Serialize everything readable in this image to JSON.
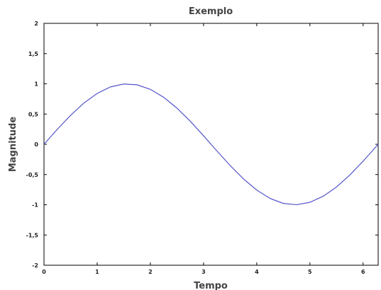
{
  "chart_data": {
    "type": "line",
    "title": "Exemplo",
    "xlabel": "Tempo",
    "ylabel": "Magnitude",
    "xlim": [
      0,
      6.283
    ],
    "ylim": [
      -2,
      2
    ],
    "x_ticks": [
      0,
      1,
      2,
      3,
      4,
      5,
      6
    ],
    "x_tick_labels": [
      "0",
      "1",
      "2",
      "3",
      "4",
      "5",
      "6"
    ],
    "y_ticks": [
      2,
      1.5,
      1,
      0.5,
      0,
      -0.5,
      -1,
      -1.5,
      -2
    ],
    "y_tick_labels": [
      "2",
      "1,5",
      "1",
      "0,5",
      "0",
      "-0,5",
      "-1",
      "-1,5",
      "-2"
    ],
    "grid": false,
    "legend": "none",
    "series": [
      {
        "color": "#5555cc",
        "x": [
          0,
          0.25,
          0.5,
          0.75,
          1.0,
          1.25,
          1.5,
          1.75,
          2.0,
          2.25,
          2.5,
          2.75,
          3.0,
          3.25,
          3.5,
          3.75,
          4.0,
          4.25,
          4.5,
          4.75,
          5.0,
          5.25,
          5.5,
          5.75,
          6.0,
          6.283
        ],
        "y": [
          0,
          0.247,
          0.479,
          0.682,
          0.841,
          0.949,
          0.997,
          0.984,
          0.909,
          0.778,
          0.598,
          0.382,
          0.141,
          -0.108,
          -0.351,
          -0.572,
          -0.757,
          -0.895,
          -0.978,
          -0.999,
          -0.959,
          -0.859,
          -0.706,
          -0.508,
          -0.279,
          0
        ]
      }
    ]
  }
}
